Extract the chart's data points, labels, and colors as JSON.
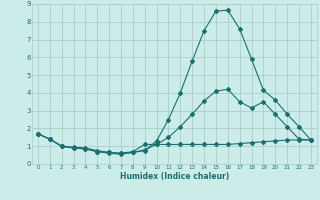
{
  "xlabel": "Humidex (Indice chaleur)",
  "xlim": [
    -0.5,
    23.5
  ],
  "ylim": [
    0,
    9
  ],
  "xticks": [
    0,
    1,
    2,
    3,
    4,
    5,
    6,
    7,
    8,
    9,
    10,
    11,
    12,
    13,
    14,
    15,
    16,
    17,
    18,
    19,
    20,
    21,
    22,
    23
  ],
  "yticks": [
    0,
    1,
    2,
    3,
    4,
    5,
    6,
    7,
    8,
    9
  ],
  "background_color": "#ccecea",
  "grid_color": "#aacccc",
  "line_color": "#1a7070",
  "line1_y": [
    1.7,
    1.4,
    1.0,
    0.9,
    0.85,
    0.7,
    0.65,
    0.6,
    0.7,
    1.1,
    1.1,
    1.1,
    1.1,
    1.1,
    1.1,
    1.1,
    1.1,
    1.15,
    1.2,
    1.25,
    1.3,
    1.35,
    1.35,
    1.35
  ],
  "line2_y": [
    1.7,
    1.4,
    1.0,
    0.95,
    0.9,
    0.75,
    0.65,
    0.6,
    0.65,
    0.8,
    1.1,
    1.5,
    2.1,
    2.8,
    3.55,
    4.1,
    4.2,
    3.5,
    3.15,
    3.5,
    2.8,
    2.1,
    1.4,
    1.35
  ],
  "line3_y": [
    1.7,
    1.4,
    1.0,
    0.9,
    0.85,
    0.7,
    0.6,
    0.55,
    0.65,
    0.75,
    1.3,
    2.5,
    4.0,
    5.8,
    7.5,
    8.6,
    8.65,
    7.6,
    5.9,
    4.15,
    3.6,
    2.8,
    2.1,
    1.35
  ]
}
